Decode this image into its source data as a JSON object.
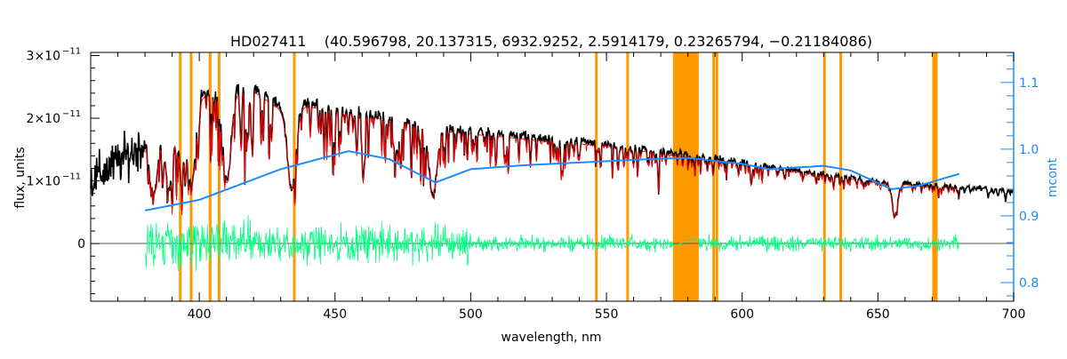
{
  "chart_data": {
    "type": "line",
    "title": "HD027411    (40.596798, 20.137315, 6932.9252, 2.5914179, 0.23265794, −0.21184086)",
    "xlabel": "wavelength, nm",
    "ylabel": "flux, units",
    "y2label": "mcont",
    "xlim": [
      360,
      700
    ],
    "ylim": [
      -9.2e-12,
      3.05e-11
    ],
    "y2lim": [
      0.772,
      1.145
    ],
    "xticks": [
      "400",
      "450",
      "500",
      "550",
      "600",
      "650",
      "700"
    ],
    "yticks": [
      {
        "value": 3e-11,
        "mant": "3×10",
        "exp": "−11"
      },
      {
        "value": 2e-11,
        "mant": "2×10",
        "exp": "−11"
      },
      {
        "value": 1e-11,
        "mant": "1×10",
        "exp": "−11"
      },
      {
        "value": 0,
        "mant": "0",
        "exp": ""
      }
    ],
    "y2ticks": [
      "1.1",
      "1.0",
      "0.9",
      "0.8"
    ],
    "masked_bands_nm": [
      [
        392.5,
        393.5
      ],
      [
        396.5,
        397.5
      ],
      [
        403.5,
        404.5
      ],
      [
        406.8,
        407.8
      ],
      [
        434.5,
        435.5
      ],
      [
        545.8,
        546.8
      ],
      [
        557.3,
        558.3
      ],
      [
        574.5,
        584
      ],
      [
        589,
        590
      ],
      [
        590.2,
        591
      ],
      [
        629.8,
        630.8
      ],
      [
        635.8,
        636.8
      ],
      [
        670,
        672
      ]
    ],
    "series": [
      {
        "name": "observed",
        "color": "#000000",
        "envelope_x": [
          360,
          380,
          390,
          400,
          410,
          420,
          430,
          440,
          460,
          480,
          490,
          500,
          550,
          600,
          650,
          700
        ],
        "envelope_y_e11": [
          1.0,
          1.6,
          2.0,
          2.4,
          2.5,
          2.5,
          2.2,
          2.25,
          2.1,
          1.95,
          1.85,
          1.8,
          1.6,
          1.3,
          1.0,
          0.85
        ]
      },
      {
        "name": "model",
        "color": "#ff0000",
        "x_range": [
          380,
          680
        ]
      },
      {
        "name": "residual",
        "color": "#00ff7f",
        "x_range": [
          380,
          680
        ]
      },
      {
        "name": "mcont",
        "color": "#1a8cff",
        "x": [
          380,
          400,
          430,
          455,
          470,
          487,
          500,
          520,
          560,
          580,
          600,
          610,
          630,
          640,
          655,
          665,
          680
        ],
        "y": [
          0.908,
          0.924,
          0.97,
          0.997,
          0.985,
          0.95,
          0.97,
          0.976,
          0.984,
          0.987,
          0.978,
          0.97,
          0.975,
          0.968,
          0.94,
          0.945,
          0.963
        ]
      }
    ],
    "grid": false
  },
  "colors": {
    "band": "#ff9900",
    "axis2": "#1a8cff"
  }
}
